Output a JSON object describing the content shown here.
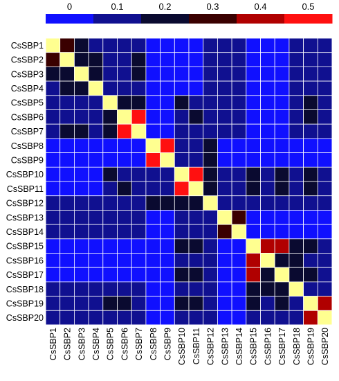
{
  "chart_data": {
    "type": "heatmap",
    "labels": [
      "CsSBP1",
      "CsSBP2",
      "CsSBP3",
      "CsSBP4",
      "CsSBP5",
      "CsSBP6",
      "CsSBP7",
      "CsSBP8",
      "CsSBP9",
      "CsSBP10",
      "CsSBP11",
      "CsSBP12",
      "CsSBP13",
      "CsSBP14",
      "CsSBP15",
      "CsSBP16",
      "CsSBP17",
      "CsSBP18",
      "CsSBP19",
      "CsSBP20"
    ],
    "colorbar": {
      "ticks": [
        "0",
        "0.1",
        "0.2",
        "0.3",
        "0.4",
        "0.5"
      ],
      "bins": [
        {
          "range": [
            0.0,
            0.05
          ],
          "color": "#1010ff"
        },
        {
          "range": [
            0.05,
            0.15
          ],
          "color": "#101090"
        },
        {
          "range": [
            0.15,
            0.25
          ],
          "color": "#0a0a30"
        },
        {
          "range": [
            0.25,
            0.35
          ],
          "color": "#3a0000"
        },
        {
          "range": [
            0.35,
            0.45
          ],
          "color": "#b00000"
        },
        {
          "range": [
            0.45,
            0.55
          ],
          "color": "#ff1010"
        }
      ],
      "diagonal_color": "#ffff90",
      "grid_color": "#ffffff"
    },
    "matrix": [
      [
        null,
        0.3,
        0.2,
        0.1,
        0.1,
        0.1,
        0.1,
        0.0,
        0.0,
        0.0,
        0.0,
        0.1,
        0.1,
        0.1,
        0.0,
        0.0,
        0.0,
        0.1,
        0.1,
        0.1
      ],
      [
        0.3,
        null,
        0.2,
        0.2,
        0.1,
        0.1,
        0.2,
        0.0,
        0.0,
        0.0,
        0.0,
        0.1,
        0.1,
        0.1,
        0.0,
        0.0,
        0.0,
        0.1,
        0.1,
        0.1
      ],
      [
        0.2,
        0.2,
        null,
        0.2,
        0.1,
        0.1,
        0.2,
        0.0,
        0.0,
        0.0,
        0.0,
        0.1,
        0.1,
        0.1,
        0.0,
        0.0,
        0.0,
        0.1,
        0.1,
        0.1
      ],
      [
        0.1,
        0.2,
        0.2,
        null,
        0.1,
        0.1,
        0.1,
        0.0,
        0.0,
        0.0,
        0.0,
        0.1,
        0.1,
        0.1,
        0.0,
        0.0,
        0.0,
        0.1,
        0.1,
        0.1
      ],
      [
        0.1,
        0.1,
        0.1,
        0.1,
        null,
        0.2,
        0.2,
        0.0,
        0.0,
        0.2,
        0.1,
        0.1,
        0.1,
        0.1,
        0.0,
        0.0,
        0.0,
        0.1,
        0.2,
        0.1
      ],
      [
        0.1,
        0.1,
        0.1,
        0.1,
        0.2,
        null,
        0.5,
        0.0,
        0.0,
        0.1,
        0.2,
        0.1,
        0.1,
        0.1,
        0.0,
        0.0,
        0.0,
        0.1,
        0.2,
        0.1
      ],
      [
        0.1,
        0.2,
        0.2,
        0.1,
        0.2,
        0.5,
        null,
        0.0,
        0.0,
        0.1,
        0.1,
        0.1,
        0.1,
        0.1,
        0.0,
        0.0,
        0.0,
        0.1,
        0.1,
        0.1
      ],
      [
        0.0,
        0.0,
        0.0,
        0.0,
        0.0,
        0.0,
        0.0,
        null,
        0.5,
        0.1,
        0.1,
        0.2,
        0.0,
        0.0,
        0.0,
        0.0,
        0.0,
        0.0,
        0.0,
        0.0
      ],
      [
        0.0,
        0.0,
        0.0,
        0.0,
        0.0,
        0.0,
        0.0,
        0.5,
        null,
        0.1,
        0.1,
        0.2,
        0.0,
        0.0,
        0.0,
        0.0,
        0.0,
        0.0,
        0.0,
        0.0
      ],
      [
        0.0,
        0.0,
        0.0,
        0.0,
        0.2,
        0.1,
        0.1,
        0.1,
        0.1,
        null,
        0.5,
        0.2,
        0.1,
        0.1,
        0.2,
        0.1,
        0.2,
        0.1,
        0.2,
        0.1
      ],
      [
        0.0,
        0.0,
        0.0,
        0.0,
        0.1,
        0.2,
        0.1,
        0.1,
        0.1,
        0.5,
        null,
        0.2,
        0.1,
        0.1,
        0.2,
        0.1,
        0.2,
        0.1,
        0.2,
        0.1
      ],
      [
        0.1,
        0.1,
        0.1,
        0.1,
        0.1,
        0.1,
        0.1,
        0.2,
        0.2,
        0.2,
        0.2,
        null,
        0.1,
        0.1,
        0.1,
        0.1,
        0.1,
        0.1,
        0.1,
        0.1
      ],
      [
        0.1,
        0.1,
        0.1,
        0.1,
        0.1,
        0.1,
        0.1,
        0.0,
        0.0,
        0.1,
        0.1,
        0.1,
        null,
        0.3,
        0.0,
        0.0,
        0.0,
        0.0,
        0.0,
        0.0
      ],
      [
        0.1,
        0.1,
        0.1,
        0.1,
        0.1,
        0.1,
        0.1,
        0.0,
        0.0,
        0.1,
        0.1,
        0.1,
        0.3,
        null,
        0.0,
        0.0,
        0.0,
        0.0,
        0.0,
        0.0
      ],
      [
        0.0,
        0.0,
        0.0,
        0.0,
        0.0,
        0.0,
        0.0,
        0.0,
        0.0,
        0.2,
        0.2,
        0.1,
        0.0,
        0.0,
        null,
        0.4,
        0.4,
        0.2,
        0.2,
        0.1
      ],
      [
        0.0,
        0.0,
        0.0,
        0.0,
        0.0,
        0.0,
        0.0,
        0.0,
        0.0,
        0.1,
        0.1,
        0.1,
        0.0,
        0.0,
        0.4,
        null,
        0.2,
        0.2,
        0.1,
        0.1
      ],
      [
        0.0,
        0.0,
        0.0,
        0.0,
        0.0,
        0.0,
        0.0,
        0.0,
        0.0,
        0.2,
        0.2,
        0.1,
        0.0,
        0.0,
        0.4,
        0.2,
        null,
        0.2,
        0.2,
        0.1
      ],
      [
        0.1,
        0.1,
        0.1,
        0.1,
        0.1,
        0.1,
        0.1,
        0.0,
        0.0,
        0.1,
        0.1,
        0.1,
        0.0,
        0.0,
        0.2,
        0.2,
        0.2,
        null,
        0.1,
        0.1
      ],
      [
        0.1,
        0.1,
        0.1,
        0.1,
        0.2,
        0.2,
        0.1,
        0.0,
        0.0,
        0.2,
        0.2,
        0.1,
        0.0,
        0.0,
        0.2,
        0.1,
        0.2,
        0.1,
        null,
        0.4
      ],
      [
        0.1,
        0.1,
        0.1,
        0.1,
        0.1,
        0.1,
        0.1,
        0.0,
        0.0,
        0.1,
        0.1,
        0.1,
        0.0,
        0.0,
        0.1,
        0.1,
        0.1,
        0.1,
        0.4,
        null
      ]
    ]
  }
}
